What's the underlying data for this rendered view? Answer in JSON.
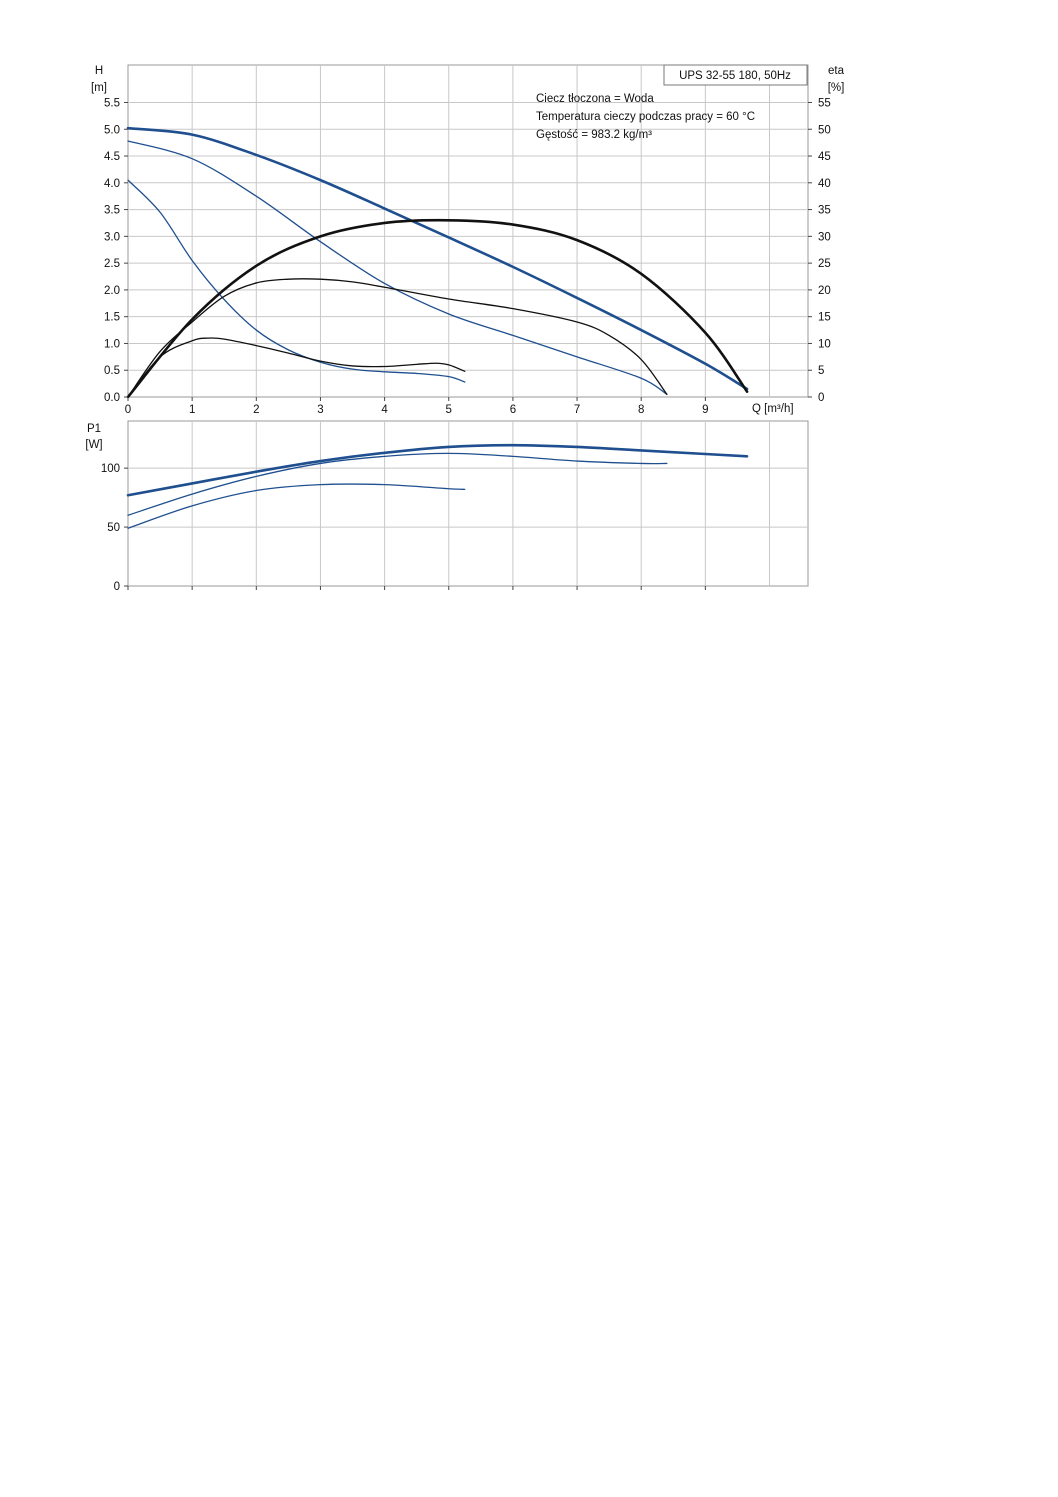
{
  "chart_data": [
    {
      "type": "line",
      "panel": "head-efficiency",
      "title": "UPS 32-55 180, 50Hz",
      "annotations": [
        "Ciecz tłoczona = Woda",
        "Temperatura cieczy podczas pracy = 60 °C",
        "Gęstość = 983.2 kg/m³"
      ],
      "xlabel": "Q [m³/h]",
      "xlim": [
        0,
        10.6
      ],
      "xticks": [
        0,
        1,
        2,
        3,
        4,
        5,
        6,
        7,
        8,
        9
      ],
      "y_left": {
        "label_top": "H",
        "label_unit": "[m]",
        "ylim": [
          0,
          6.2
        ],
        "ticks": [
          "0.0",
          "0.5",
          "1.0",
          "1.5",
          "2.0",
          "2.5",
          "3.0",
          "3.5",
          "4.0",
          "4.5",
          "5.0",
          "5.5"
        ]
      },
      "y_right": {
        "label_top": "eta",
        "label_unit": "[%]",
        "ylim": [
          0,
          62
        ],
        "ticks": [
          "0",
          "5",
          "10",
          "15",
          "20",
          "25",
          "30",
          "35",
          "40",
          "45",
          "50",
          "55"
        ]
      },
      "grid": true,
      "colors": {
        "head": "#1f4f8f",
        "efficiency": "#111111",
        "grid": "#c8c8c8"
      },
      "series": [
        {
          "kind": "H",
          "axis": "left",
          "weight": "thick",
          "x": [
            0,
            1,
            2,
            3,
            4,
            5,
            6,
            7,
            8,
            9,
            9.65
          ],
          "y": [
            5.02,
            4.9,
            4.52,
            4.05,
            3.52,
            2.98,
            2.43,
            1.85,
            1.25,
            0.62,
            0.15
          ]
        },
        {
          "kind": "H",
          "axis": "left",
          "weight": "thin",
          "x": [
            0,
            1,
            2,
            3,
            4,
            5,
            6,
            7,
            8,
            8.4
          ],
          "y": [
            4.78,
            4.45,
            3.75,
            2.9,
            2.12,
            1.55,
            1.15,
            0.75,
            0.35,
            0.05
          ]
        },
        {
          "kind": "H",
          "axis": "left",
          "weight": "thin",
          "x": [
            0,
            0.5,
            1,
            1.5,
            2,
            2.5,
            3,
            3.5,
            4,
            4.5,
            5,
            5.25
          ],
          "y": [
            4.05,
            3.45,
            2.55,
            1.82,
            1.25,
            0.88,
            0.65,
            0.52,
            0.47,
            0.44,
            0.38,
            0.28
          ]
        },
        {
          "kind": "eta",
          "axis": "right",
          "weight": "thick",
          "x": [
            0,
            1,
            2,
            3,
            4,
            5,
            6,
            7,
            8,
            9,
            9.65
          ],
          "y": [
            0,
            14.5,
            24.5,
            30,
            32.5,
            33,
            32.2,
            29.3,
            23,
            12,
            1
          ]
        },
        {
          "kind": "eta",
          "axis": "right",
          "weight": "thin",
          "x": [
            0,
            0.5,
            1,
            1.5,
            2,
            2.5,
            3,
            3.5,
            4,
            5,
            6,
            7,
            7.5,
            8,
            8.4
          ],
          "y": [
            0,
            8.5,
            14,
            18.8,
            21.3,
            22,
            22,
            21.5,
            20.5,
            18.3,
            16.5,
            14,
            11.5,
            7,
            0.5
          ]
        },
        {
          "kind": "eta",
          "axis": "right",
          "weight": "thin",
          "x": [
            0,
            0.5,
            1,
            1.25,
            1.5,
            2,
            2.5,
            3,
            3.5,
            4,
            4.5,
            4.8,
            5,
            5.25
          ],
          "y": [
            0,
            7.5,
            10.5,
            11,
            10.8,
            9.6,
            8.2,
            6.7,
            5.8,
            5.7,
            6.1,
            6.3,
            6,
            4.8
          ]
        }
      ]
    },
    {
      "type": "line",
      "panel": "power",
      "ylabel_top": "P1",
      "ylabel_unit": "[W]",
      "xlim": [
        0,
        10.6
      ],
      "ylim": [
        0,
        140
      ],
      "yticks": [
        "0",
        "50",
        "100"
      ],
      "grid": true,
      "colors": {
        "power": "#1f4f8f"
      },
      "series": [
        {
          "kind": "P1",
          "weight": "thick",
          "x": [
            0,
            1,
            2,
            3,
            4,
            5,
            6,
            7,
            8,
            9,
            9.65
          ],
          "y": [
            77,
            87,
            97,
            106,
            113,
            118,
            119.5,
            118,
            115,
            112,
            110
          ]
        },
        {
          "kind": "P1",
          "weight": "thin",
          "x": [
            0,
            1,
            2,
            3,
            4,
            5,
            6,
            7,
            8,
            8.4
          ],
          "y": [
            60,
            78,
            93,
            104,
            110,
            112.5,
            110,
            106,
            104,
            104
          ]
        },
        {
          "kind": "P1",
          "weight": "thin",
          "x": [
            0,
            1,
            2,
            3,
            4,
            5,
            5.25
          ],
          "y": [
            49,
            68,
            81,
            86,
            86,
            82.5,
            82
          ]
        }
      ]
    }
  ]
}
